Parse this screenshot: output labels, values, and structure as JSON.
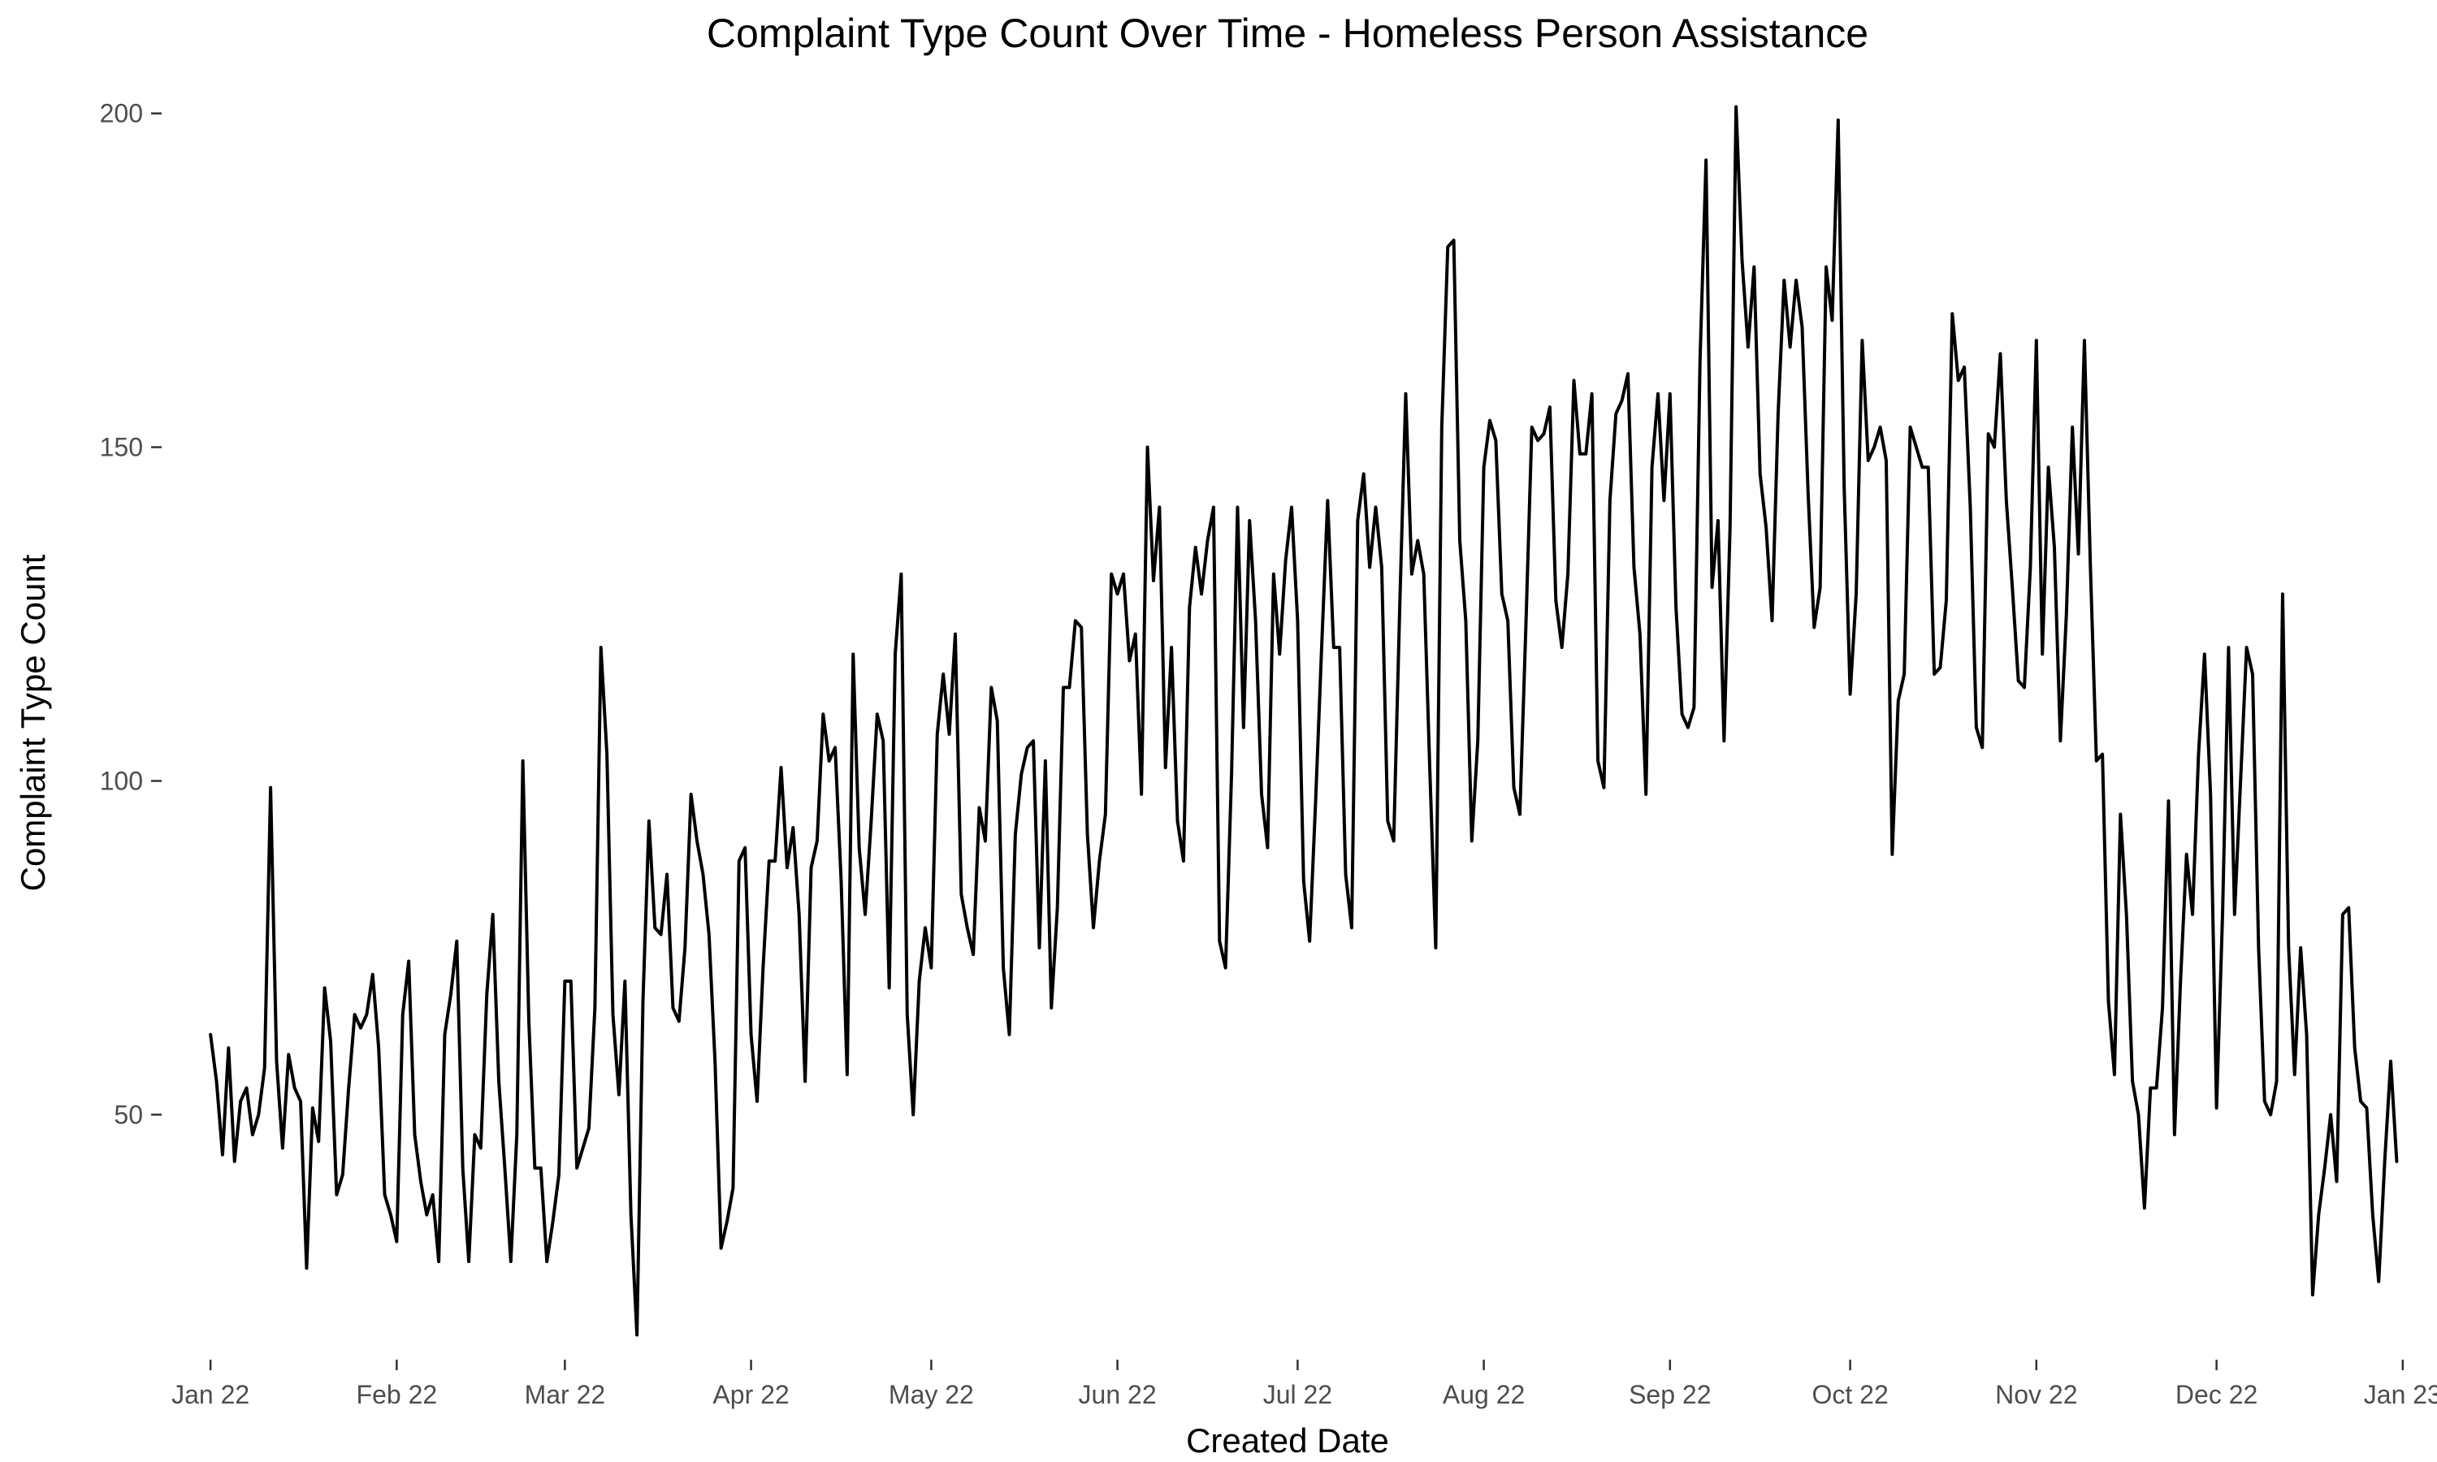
{
  "chart_data": {
    "type": "line",
    "title": "Complaint Type Count Over Time - Homeless Person Assistance",
    "xlabel": "Created Date",
    "ylabel": "Complaint Type Count",
    "x_ticks": [
      {
        "date": "2022-01-01",
        "label": "Jan 22"
      },
      {
        "date": "2022-02-01",
        "label": "Feb 22"
      },
      {
        "date": "2022-03-01",
        "label": "Mar 22"
      },
      {
        "date": "2022-04-01",
        "label": "Apr 22"
      },
      {
        "date": "2022-05-01",
        "label": "May 22"
      },
      {
        "date": "2022-06-01",
        "label": "Jun 22"
      },
      {
        "date": "2022-07-01",
        "label": "Jul 22"
      },
      {
        "date": "2022-08-01",
        "label": "Aug 22"
      },
      {
        "date": "2022-09-01",
        "label": "Sep 22"
      },
      {
        "date": "2022-10-01",
        "label": "Oct 22"
      },
      {
        "date": "2022-11-01",
        "label": "Nov 22"
      },
      {
        "date": "2022-12-01",
        "label": "Dec 22"
      },
      {
        "date": "2023-01-01",
        "label": "Jan 23"
      }
    ],
    "y_ticks": [
      50,
      100,
      150,
      200
    ],
    "xlim": [
      "2021-12-24",
      "2023-01-04"
    ],
    "ylim": [
      15,
      203
    ],
    "grid": false,
    "series": [
      {
        "color": "#000000",
        "x_start": "2022-01-01",
        "x_step_days": 1,
        "values": [
          62,
          55,
          44,
          60,
          43,
          52,
          54,
          47,
          50,
          57,
          99,
          58,
          45,
          59,
          54,
          52,
          27,
          51,
          46,
          69,
          61,
          38,
          41,
          54,
          65,
          63,
          65,
          71,
          60,
          38,
          35,
          31,
          65,
          73,
          47,
          40,
          35,
          38,
          28,
          62,
          68,
          76,
          42,
          28,
          47,
          45,
          68,
          80,
          55,
          42,
          28,
          47,
          103,
          64,
          42,
          42,
          28,
          34,
          41,
          70,
          70,
          42,
          45,
          48,
          66,
          120,
          104,
          65,
          53,
          70,
          35,
          17,
          67,
          94,
          78,
          77,
          86,
          66,
          64,
          75,
          98,
          91,
          86,
          77,
          58,
          30,
          34,
          39,
          88,
          90,
          62,
          52,
          72,
          88,
          88,
          102,
          87,
          93,
          80,
          55,
          87,
          91,
          110,
          103,
          105,
          85,
          56,
          119,
          90,
          80,
          94,
          110,
          106,
          69,
          119,
          131,
          65,
          50,
          70,
          78,
          72,
          107,
          116,
          107,
          122,
          83,
          78,
          74,
          96,
          91,
          114,
          109,
          72,
          62,
          92,
          101,
          105,
          106,
          75,
          103,
          66,
          81,
          114,
          114,
          124,
          123,
          92,
          78,
          88,
          95,
          131,
          128,
          131,
          118,
          122,
          98,
          150,
          130,
          141,
          102,
          120,
          94,
          88,
          126,
          135,
          128,
          136,
          141,
          76,
          72,
          101,
          141,
          108,
          139,
          124,
          98,
          90,
          131,
          119,
          133,
          141,
          124,
          85,
          76,
          97,
          120,
          142,
          120,
          120,
          86,
          78,
          139,
          146,
          132,
          141,
          132,
          94,
          91,
          126,
          158,
          131,
          136,
          131,
          102,
          75,
          153,
          180,
          181,
          136,
          124,
          91,
          106,
          147,
          154,
          151,
          128,
          124,
          99,
          95,
          123,
          153,
          151,
          152,
          156,
          127,
          120,
          131,
          160,
          149,
          149,
          158,
          103,
          99,
          142,
          155,
          157,
          161,
          132,
          122,
          98,
          147,
          158,
          142,
          158,
          126,
          110,
          108,
          111,
          163,
          193,
          129,
          139,
          106,
          138,
          201,
          178,
          165,
          177,
          146,
          138,
          124,
          155,
          175,
          165,
          175,
          168,
          143,
          123,
          129,
          177,
          169,
          199,
          144,
          113,
          128,
          166,
          148,
          150,
          153,
          148,
          89,
          112,
          116,
          153,
          150,
          147,
          147,
          116,
          117,
          127,
          170,
          160,
          162,
          141,
          108,
          105,
          152,
          150,
          164,
          142,
          129,
          115,
          114,
          132,
          166,
          119,
          147,
          135,
          106,
          125,
          153,
          134,
          166,
          132,
          103,
          104,
          67,
          56,
          95,
          80,
          55,
          50,
          36,
          54,
          54,
          66,
          97,
          47,
          70,
          89,
          80,
          104,
          119,
          98,
          51,
          80,
          120,
          80,
          100,
          120,
          116,
          75,
          52,
          50,
          55,
          128,
          75,
          56,
          75,
          62,
          23,
          35,
          42,
          50,
          40,
          80,
          81,
          60,
          52,
          51,
          35,
          25,
          43,
          58,
          43
        ]
      }
    ]
  }
}
